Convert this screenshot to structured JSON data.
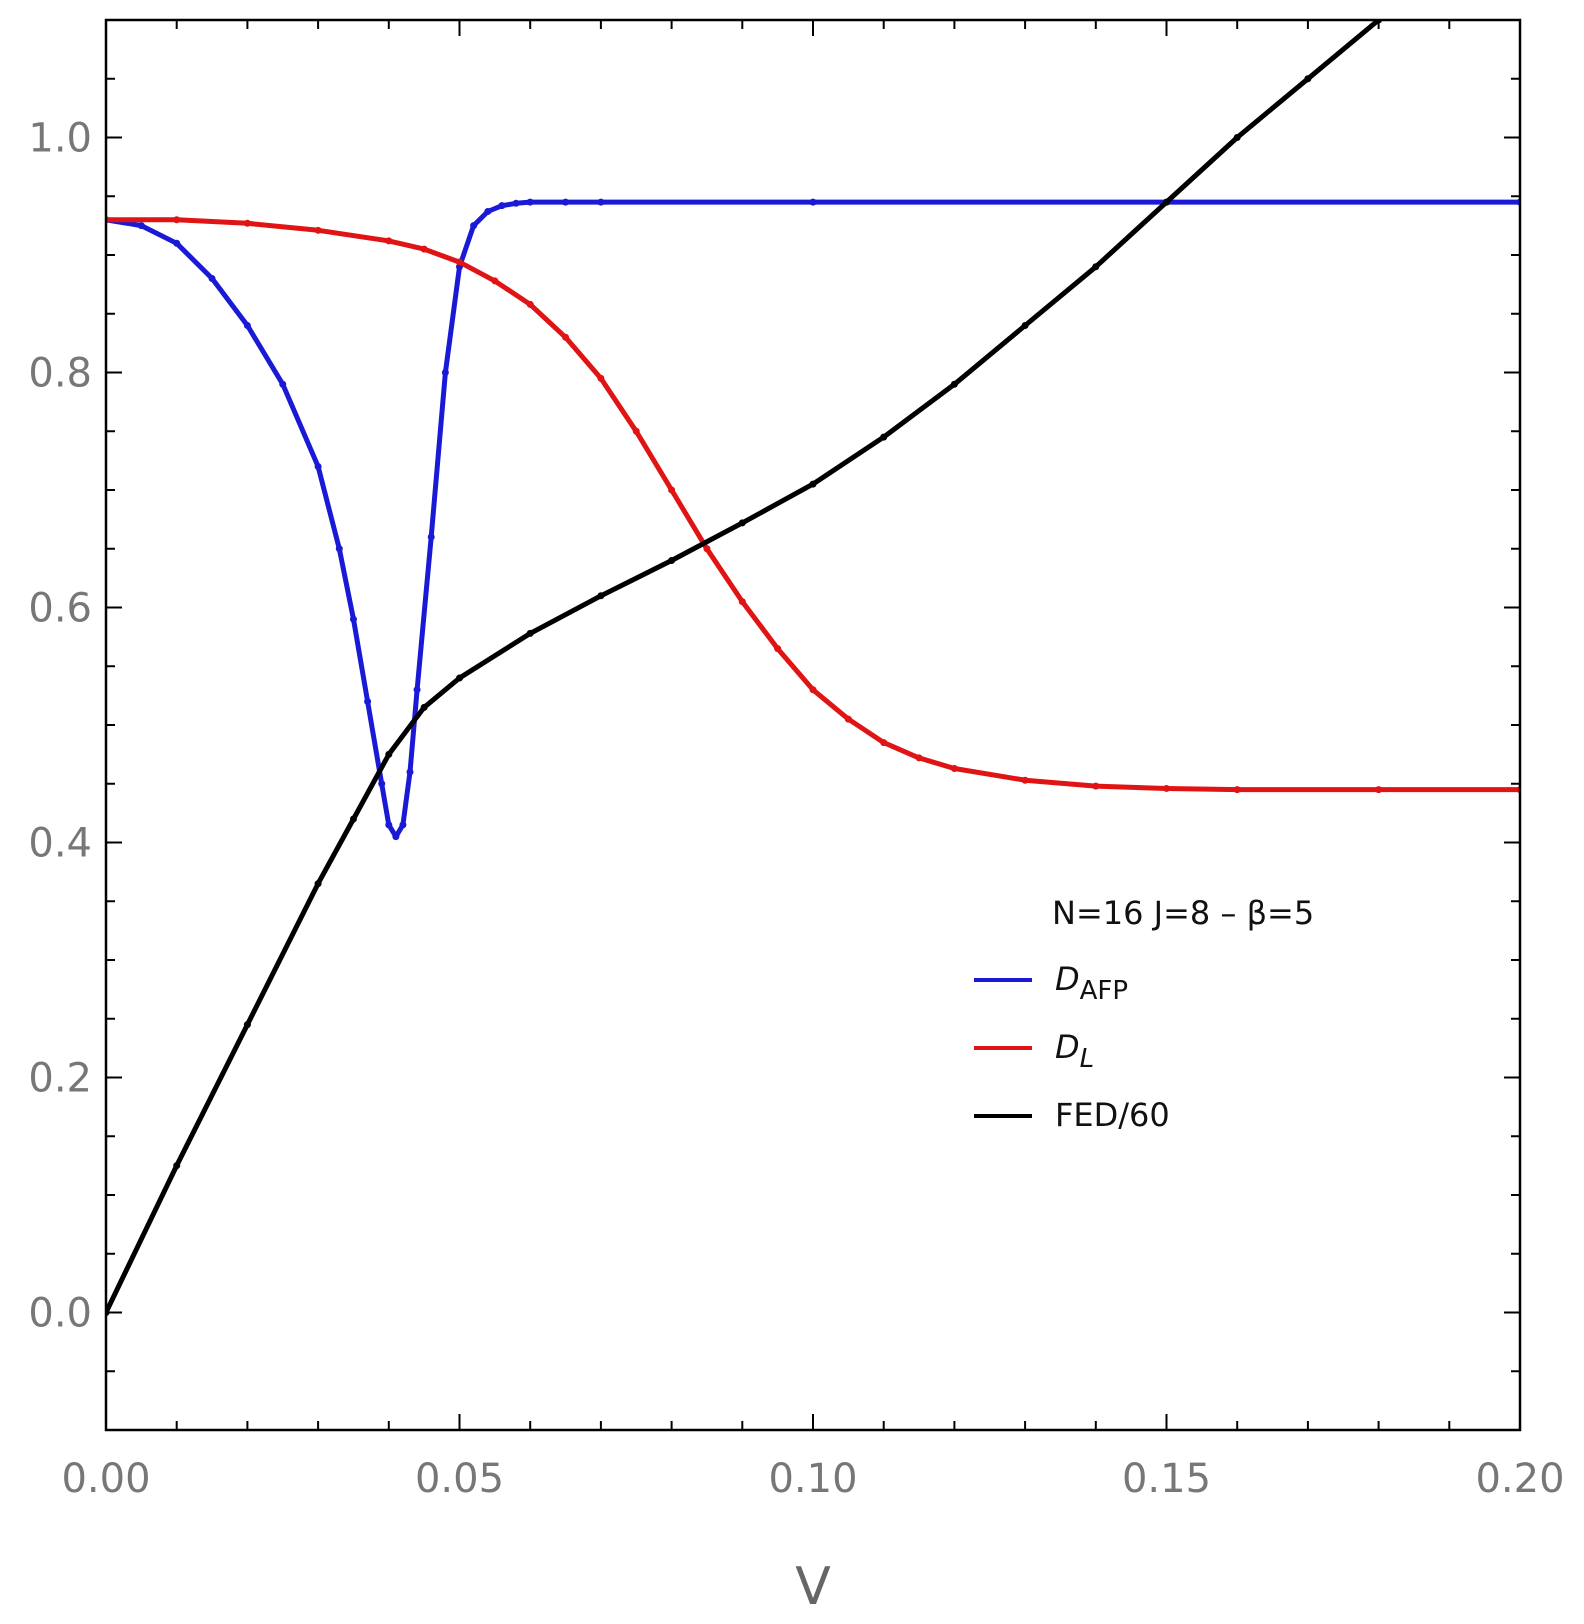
{
  "chart_data": {
    "type": "line",
    "title": "",
    "xlabel": "V",
    "ylabel": "",
    "xlim": [
      0,
      0.2
    ],
    "ylim": [
      -0.1,
      1.1
    ],
    "x_ticks": [
      "0.00",
      "0.05",
      "0.10",
      "0.15",
      "0.20"
    ],
    "y_ticks": [
      "0.0",
      "0.2",
      "0.4",
      "0.6",
      "0.8",
      "1.0"
    ],
    "grid": false,
    "legend": {
      "title": "N=16 J=8 – β=5",
      "placement": "center-right",
      "entries": [
        {
          "main": "D",
          "sub": "AFP",
          "color": "#1a1ad6"
        },
        {
          "main": "D",
          "sub": "L",
          "color": "#e01414"
        },
        {
          "main": "FED/60",
          "sub": "",
          "color": "#000000"
        }
      ]
    },
    "series": [
      {
        "name": "DAFP",
        "color": "#1a1ad6",
        "x": [
          0,
          0.005,
          0.01,
          0.015,
          0.02,
          0.025,
          0.03,
          0.033,
          0.035,
          0.037,
          0.039,
          0.04,
          0.041,
          0.042,
          0.043,
          0.044,
          0.046,
          0.048,
          0.05,
          0.052,
          0.054,
          0.056,
          0.058,
          0.06,
          0.065,
          0.07,
          0.1,
          0.15,
          0.2
        ],
        "y": [
          0.93,
          0.925,
          0.91,
          0.88,
          0.84,
          0.79,
          0.72,
          0.65,
          0.59,
          0.52,
          0.45,
          0.415,
          0.405,
          0.415,
          0.46,
          0.53,
          0.66,
          0.8,
          0.89,
          0.925,
          0.937,
          0.942,
          0.944,
          0.945,
          0.945,
          0.945,
          0.945,
          0.945,
          0.945
        ]
      },
      {
        "name": "DL",
        "color": "#e01414",
        "x": [
          0,
          0.01,
          0.02,
          0.03,
          0.04,
          0.045,
          0.05,
          0.055,
          0.06,
          0.065,
          0.07,
          0.075,
          0.08,
          0.085,
          0.09,
          0.095,
          0.1,
          0.105,
          0.11,
          0.115,
          0.12,
          0.13,
          0.14,
          0.15,
          0.16,
          0.18,
          0.2
        ],
        "y": [
          0.93,
          0.93,
          0.927,
          0.921,
          0.912,
          0.905,
          0.894,
          0.878,
          0.858,
          0.83,
          0.795,
          0.75,
          0.7,
          0.65,
          0.605,
          0.565,
          0.53,
          0.505,
          0.485,
          0.472,
          0.463,
          0.453,
          0.448,
          0.446,
          0.445,
          0.445,
          0.445
        ]
      },
      {
        "name": "FED/60",
        "color": "#000000",
        "x": [
          0,
          0.01,
          0.02,
          0.03,
          0.035,
          0.04,
          0.045,
          0.05,
          0.06,
          0.07,
          0.08,
          0.09,
          0.1,
          0.11,
          0.12,
          0.13,
          0.14,
          0.15,
          0.16,
          0.17,
          0.18,
          0.19
        ],
        "y": [
          0,
          0.125,
          0.245,
          0.365,
          0.42,
          0.475,
          0.515,
          0.54,
          0.578,
          0.61,
          0.64,
          0.672,
          0.705,
          0.745,
          0.79,
          0.84,
          0.89,
          0.945,
          1.0,
          1.05,
          1.1,
          1.155
        ]
      }
    ]
  }
}
